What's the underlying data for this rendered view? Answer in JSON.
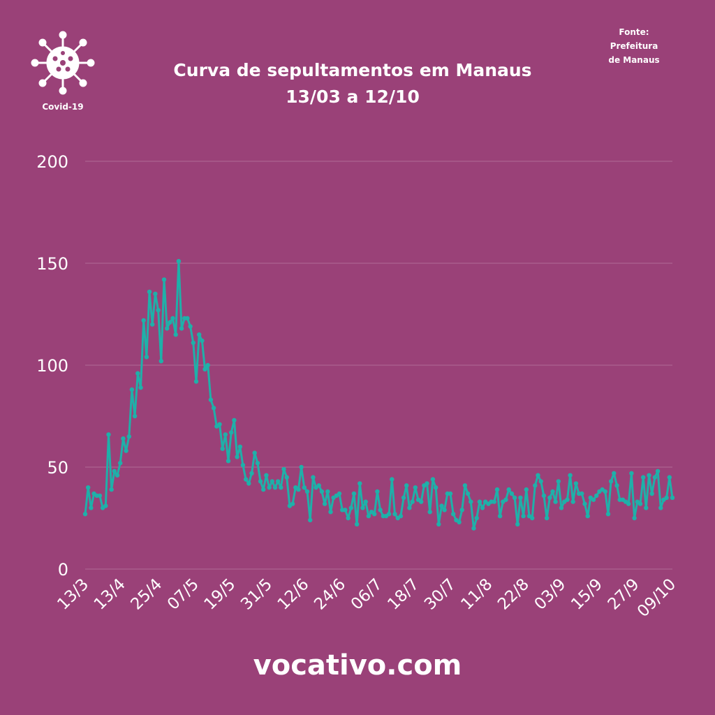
{
  "logo": {
    "icon": "virus-icon",
    "label": "Covid-19"
  },
  "title": {
    "line1": "Curva de sepultamentos em Manaus",
    "line2": "13/03 a 12/10"
  },
  "source": {
    "line1": "Fonte:",
    "line2": "Prefeitura",
    "line3": "de Manaus"
  },
  "brand": "vocativo.com",
  "colors": {
    "background": "#9a4178",
    "line": "#1fb0a9",
    "grid": "#b06a96",
    "text": "#ffffff"
  },
  "chart_data": {
    "type": "line",
    "title": "Curva de sepultamentos em Manaus",
    "xlabel": "",
    "ylabel": "",
    "ylim": [
      0,
      200
    ],
    "yticks": [
      0,
      50,
      100,
      150,
      200
    ],
    "grid": true,
    "legend": "none",
    "xtick_labels": [
      "13/3",
      "13/4",
      "25/4",
      "07/5",
      "19/5",
      "31/5",
      "12/6",
      "24/6",
      "06/7",
      "18/7",
      "30/7",
      "11/8",
      "22/8",
      "03/9",
      "15/9",
      "27/9",
      "09/10"
    ],
    "series": [
      {
        "values": [
          27,
          40,
          30,
          37,
          36,
          36,
          30,
          31,
          66,
          39,
          48,
          46,
          52,
          64,
          58,
          65,
          88,
          75,
          96,
          89,
          122,
          104,
          136,
          120,
          135,
          127,
          102,
          142,
          118,
          121,
          123,
          115,
          151,
          118,
          123,
          123,
          119,
          111,
          92,
          115,
          112,
          98,
          100,
          83,
          79,
          70,
          71,
          59,
          66,
          53,
          67,
          73,
          55,
          60,
          51,
          44,
          42,
          47,
          57,
          52,
          43,
          39,
          46,
          40,
          43,
          40,
          43,
          40,
          49,
          45,
          31,
          32,
          40,
          39,
          50,
          40,
          38,
          24,
          45,
          40,
          41,
          38,
          32,
          38,
          28,
          35,
          36,
          37,
          29,
          29,
          25,
          30,
          37,
          22,
          42,
          30,
          33,
          26,
          28,
          27,
          38,
          29,
          26,
          26,
          27,
          44,
          27,
          25,
          26,
          35,
          41,
          30,
          33,
          40,
          34,
          33,
          41,
          42,
          28,
          44,
          40,
          22,
          31,
          29,
          37,
          37,
          27,
          24,
          23,
          29,
          41,
          37,
          33,
          20,
          25,
          33,
          30,
          33,
          32,
          33,
          33,
          39,
          26,
          33,
          34,
          39,
          37,
          35,
          22,
          35,
          26,
          39,
          26,
          25,
          41,
          46,
          43,
          36,
          25,
          35,
          38,
          33,
          43,
          30,
          33,
          34,
          46,
          33,
          42,
          37,
          37,
          32,
          26,
          35,
          34,
          36,
          38,
          39,
          38,
          27,
          43,
          47,
          41,
          34,
          34,
          33,
          32,
          47,
          25,
          33,
          32,
          45,
          30,
          46,
          37,
          45,
          48,
          30,
          34,
          35,
          45,
          35
        ]
      }
    ]
  }
}
